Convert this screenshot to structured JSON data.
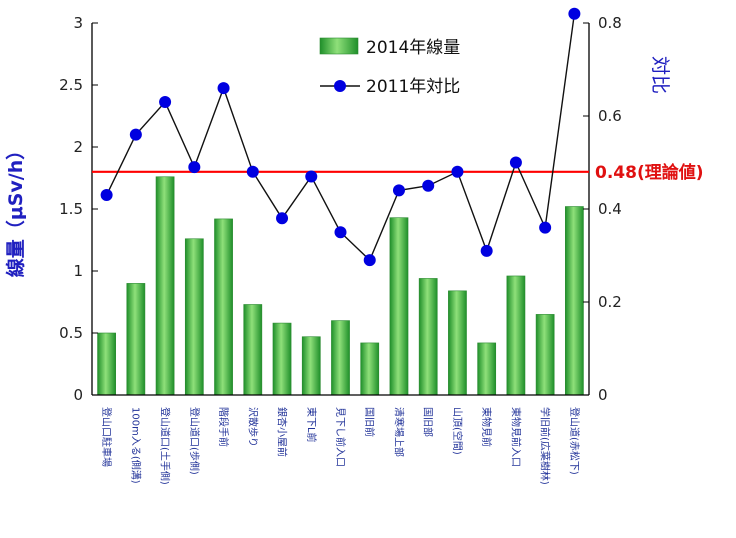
{
  "chart_data": {
    "type": "bar",
    "categories": [
      "登山口駐車場",
      "100m入る(側溝)",
      "登山道口(土手側)",
      "登山道口(歩側)",
      "階段手前",
      "沢散歩り",
      "銀杏小屋前",
      "東下L前",
      "見下し前入口",
      "国旧前",
      "清寒場上部",
      "国旧部",
      "山頂(空間)",
      "東物見前",
      "東物見前入口",
      "学旧前(広葉樹林)",
      "登山道(赤松下)"
    ],
    "series": [
      {
        "name": "2014年線量",
        "axis": "left",
        "color": "#3cb44b",
        "values": [
          0.5,
          0.9,
          1.76,
          1.26,
          1.42,
          0.73,
          0.58,
          0.47,
          0.6,
          0.42,
          1.43,
          0.94,
          0.84,
          0.42,
          0.96,
          0.65,
          1.52
        ]
      },
      {
        "name": "2011年対比",
        "axis": "right",
        "color": "#0000cc",
        "values": [
          0.43,
          0.56,
          0.63,
          0.49,
          0.66,
          0.48,
          0.38,
          0.47,
          0.35,
          0.29,
          0.44,
          0.45,
          0.48,
          0.31,
          0.5,
          0.36,
          0.82
        ]
      }
    ],
    "ylabel": "線量（μSv/h）",
    "y2label": "対比",
    "ylim": [
      0,
      3
    ],
    "y2lim": [
      0,
      0.8
    ],
    "yticks": [
      "0",
      "0.5",
      "1",
      "1.5",
      "2",
      "2.5",
      "3"
    ],
    "y2ticks": [
      "0",
      "0.2",
      "0.4",
      "0.6",
      "0.8"
    ],
    "reference_line": {
      "value": 0.48,
      "axis": "right",
      "label": "0.48(理論値)",
      "color": "#ff0000"
    },
    "legend": {
      "placement": "top-center"
    },
    "grid": false
  }
}
